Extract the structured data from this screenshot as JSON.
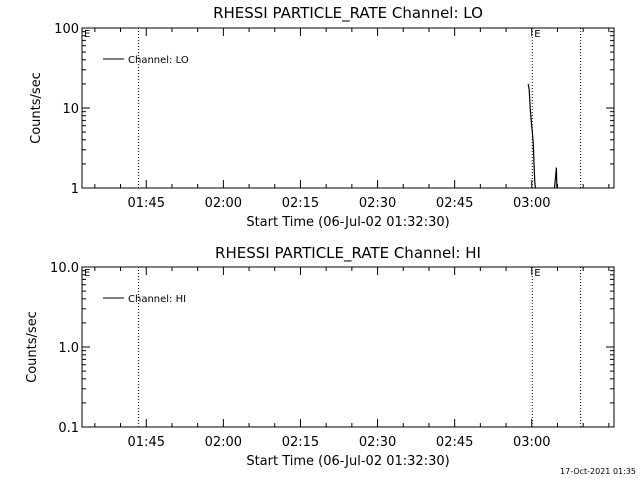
{
  "footer_timestamp": "17-Oct-2021 01:35",
  "chart_data": [
    {
      "type": "line",
      "title": "RHESSI PARTICLE_RATE Channel: LO",
      "xlabel": "Start Time (06-Jul-02 01:32:30)",
      "ylabel": "Counts/sec",
      "yscale": "log",
      "ylim": [
        1,
        100
      ],
      "y_tick_labels": [
        "1",
        "10",
        "100"
      ],
      "x_tick_labels": [
        "01:45",
        "02:00",
        "02:15",
        "02:30",
        "02:45",
        "03:00"
      ],
      "x_tick_minutes": [
        105,
        120,
        135,
        150,
        165,
        180
      ],
      "xlim_minutes": [
        92.5,
        196
      ],
      "eclipse_markers_minutes": [
        103.5,
        180.1,
        189.5
      ],
      "eclipse_label": "E",
      "legend": "top-left",
      "series": [
        {
          "name": "Channel: LO",
          "x_minutes": [
            179.3,
            179.5,
            179.7,
            179.9,
            180.1,
            180.3,
            180.5,
            180.6,
            180.7,
            180.8,
            184.4,
            184.6,
            184.8,
            184.9
          ],
          "values": [
            20,
            17,
            10,
            7,
            5,
            3.6,
            1.6,
            1.2,
            1.0,
            1.0,
            1.0,
            1.3,
            1.8,
            1.0
          ]
        }
      ]
    },
    {
      "type": "line",
      "title": "RHESSI PARTICLE_RATE Channel: HI",
      "xlabel": "Start Time (06-Jul-02 01:32:30)",
      "ylabel": "Counts/sec",
      "yscale": "log",
      "ylim": [
        0.1,
        10
      ],
      "y_tick_labels": [
        "0.1",
        "1.0",
        "10.0"
      ],
      "x_tick_labels": [
        "01:45",
        "02:00",
        "02:15",
        "02:30",
        "02:45",
        "03:00"
      ],
      "x_tick_minutes": [
        105,
        120,
        135,
        150,
        165,
        180
      ],
      "xlim_minutes": [
        92.5,
        196
      ],
      "eclipse_markers_minutes": [
        103.5,
        180.1,
        189.5
      ],
      "eclipse_label": "E",
      "legend": "top-left",
      "series": [
        {
          "name": "Channel: HI",
          "x_minutes": [],
          "values": []
        }
      ]
    }
  ]
}
